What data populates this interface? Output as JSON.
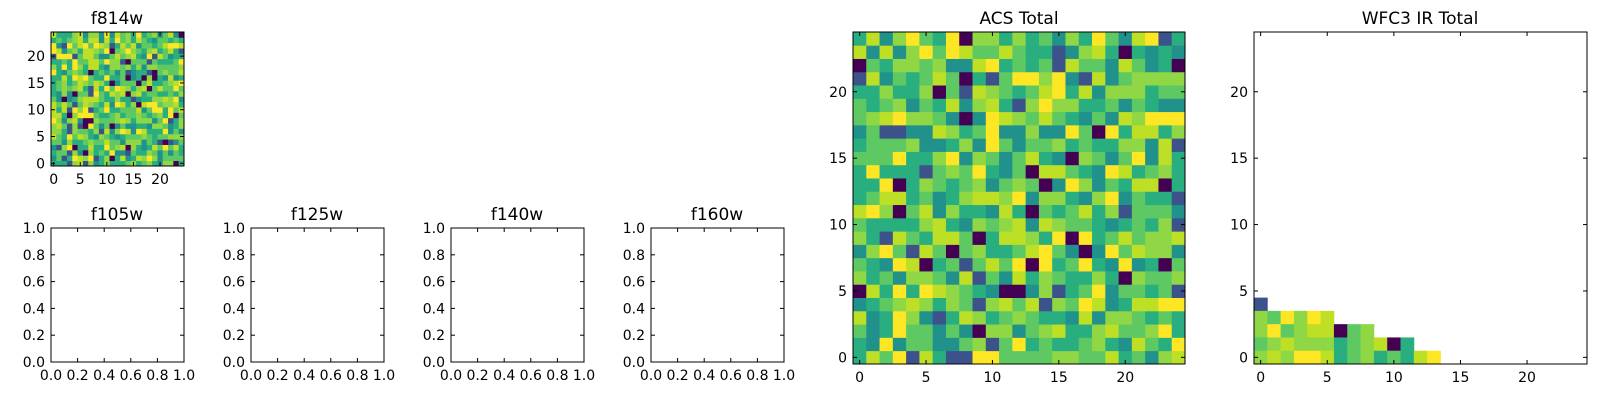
{
  "palette": [
    "#440154",
    "#3b528b",
    "#21918c",
    "#29af7f",
    "#5ec962",
    "#8fd744",
    "#bddf26",
    "#fde725"
  ],
  "chart_data": [
    {
      "id": "f814w",
      "type": "heatmap",
      "title": "f814w",
      "grid_size": [
        25,
        25
      ],
      "seed": 11,
      "xlim": [
        -0.5,
        24.5
      ],
      "ylim": [
        -0.5,
        24.5
      ],
      "xticks": [
        0,
        5,
        10,
        15,
        20
      ],
      "yticks": [
        0,
        5,
        10,
        15,
        20
      ],
      "xtick_labels": [
        "0",
        "5",
        "10",
        "15",
        "20"
      ],
      "ytick_labels": [
        "0",
        "5",
        "10",
        "15",
        "20"
      ]
    },
    {
      "id": "f105w",
      "type": "heatmap",
      "title": "f105w",
      "empty": true,
      "xlim": [
        0,
        1
      ],
      "ylim": [
        0,
        1
      ],
      "xticks": [
        0,
        0.2,
        0.4,
        0.6,
        0.8,
        1.0
      ],
      "yticks": [
        0,
        0.2,
        0.4,
        0.6,
        0.8,
        1.0
      ],
      "xtick_labels": [
        "0.0",
        "0.2",
        "0.4",
        "0.6",
        "0.8",
        "1.0"
      ],
      "ytick_labels": [
        "0.0",
        "0.2",
        "0.4",
        "0.6",
        "0.8",
        "1.0"
      ]
    },
    {
      "id": "f125w",
      "type": "heatmap",
      "title": "f125w",
      "empty": true,
      "xlim": [
        0,
        1
      ],
      "ylim": [
        0,
        1
      ],
      "xticks": [
        0,
        0.2,
        0.4,
        0.6,
        0.8,
        1.0
      ],
      "yticks": [
        0,
        0.2,
        0.4,
        0.6,
        0.8,
        1.0
      ],
      "xtick_labels": [
        "0.0",
        "0.2",
        "0.4",
        "0.6",
        "0.8",
        "1.0"
      ],
      "ytick_labels": [
        "0.0",
        "0.2",
        "0.4",
        "0.6",
        "0.8",
        "1.0"
      ]
    },
    {
      "id": "f140w",
      "type": "heatmap",
      "title": "f140w",
      "empty": true,
      "xlim": [
        0,
        1
      ],
      "ylim": [
        0,
        1
      ],
      "xticks": [
        0,
        0.2,
        0.4,
        0.6,
        0.8,
        1.0
      ],
      "yticks": [
        0,
        0.2,
        0.4,
        0.6,
        0.8,
        1.0
      ],
      "xtick_labels": [
        "0.0",
        "0.2",
        "0.4",
        "0.6",
        "0.8",
        "1.0"
      ],
      "ytick_labels": [
        "0.0",
        "0.2",
        "0.4",
        "0.6",
        "0.8",
        "1.0"
      ]
    },
    {
      "id": "f160w",
      "type": "heatmap",
      "title": "f160w",
      "empty": true,
      "xlim": [
        0,
        1
      ],
      "ylim": [
        0,
        1
      ],
      "xticks": [
        0,
        0.2,
        0.4,
        0.6,
        0.8,
        1.0
      ],
      "yticks": [
        0,
        0.2,
        0.4,
        0.6,
        0.8,
        1.0
      ],
      "xtick_labels": [
        "0.0",
        "0.2",
        "0.4",
        "0.6",
        "0.8",
        "1.0"
      ],
      "ytick_labels": [
        "0.0",
        "0.2",
        "0.4",
        "0.6",
        "0.8",
        "1.0"
      ]
    },
    {
      "id": "acs",
      "type": "heatmap",
      "title": "ACS Total",
      "grid_size": [
        25,
        25
      ],
      "seed": 7,
      "xlim": [
        -0.5,
        24.5
      ],
      "ylim": [
        -0.5,
        24.5
      ],
      "xticks": [
        0,
        5,
        10,
        15,
        20
      ],
      "yticks": [
        0,
        5,
        10,
        15,
        20
      ],
      "xtick_labels": [
        "0",
        "5",
        "10",
        "15",
        "20"
      ],
      "ytick_labels": [
        "0",
        "5",
        "10",
        "15",
        "20"
      ]
    },
    {
      "id": "wfc3",
      "type": "heatmap",
      "title": "WFC3 IR Total",
      "xlim": [
        -0.5,
        24.5
      ],
      "ylim": [
        -0.5,
        24.5
      ],
      "xticks": [
        0,
        5,
        10,
        15,
        20
      ],
      "yticks": [
        0,
        5,
        10,
        15,
        20
      ],
      "xtick_labels": [
        "0",
        "5",
        "10",
        "15",
        "20"
      ],
      "ytick_labels": [
        "0",
        "5",
        "10",
        "15",
        "20"
      ],
      "rows": [
        {
          "y": 4,
          "x0": 0,
          "levels": [
            1
          ]
        },
        {
          "y": 3,
          "x0": 0,
          "levels": [
            5,
            4,
            7,
            5,
            7,
            6
          ]
        },
        {
          "y": 2,
          "x0": 0,
          "levels": [
            5,
            7,
            4,
            5,
            6,
            6,
            0,
            4,
            5
          ]
        },
        {
          "y": 1,
          "x0": 0,
          "levels": [
            4,
            5,
            6,
            5,
            5,
            5,
            3,
            4,
            5,
            6,
            0,
            3
          ]
        },
        {
          "y": 0,
          "x0": 0,
          "levels": [
            5,
            6,
            5,
            7,
            7,
            6,
            3,
            4,
            5,
            3,
            4,
            3,
            6,
            7
          ]
        }
      ]
    }
  ]
}
